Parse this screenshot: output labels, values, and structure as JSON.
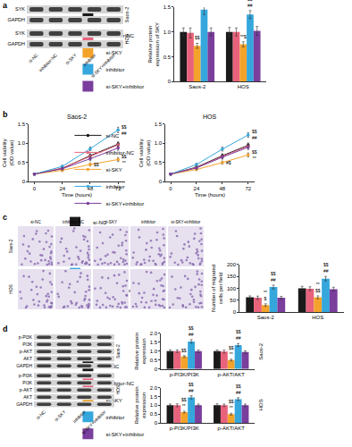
{
  "panel_labels": [
    "a",
    "b",
    "c",
    "d"
  ],
  "blot_a": {
    "rows": [
      {
        "cell_line": "Saos-2",
        "bands": [
          "SYK",
          "GAPDH"
        ]
      },
      {
        "cell_line": "HOS",
        "bands": [
          "SYK",
          "GAPDH"
        ]
      }
    ],
    "lanes": [
      "si-NC",
      "inhibitor-NC",
      "si-SKY",
      "inhibitor",
      "si-SKY+inhibitor"
    ]
  },
  "micrographs_c": {
    "columns": [
      "si-NC",
      "inhibitor-NC",
      "si-SKY",
      "inhibitor",
      "si-SKY+inhibitor"
    ],
    "rows": [
      "Saos-2",
      "HOS"
    ]
  },
  "blot_d": {
    "rows": [
      {
        "cell_line": "Saos-2",
        "bands": [
          "p-PI3K",
          "PI3K",
          "p-AKT",
          "AKT",
          "GAPDH"
        ]
      },
      {
        "cell_line": "HOS",
        "bands": [
          "p-PI3K",
          "PI3K",
          "p-AKT",
          "AKT",
          "GAPDH"
        ]
      }
    ],
    "lanes": [
      "si-NC",
      "si-SKY",
      "inhibitor",
      "si-SKY+inhibitor"
    ]
  },
  "chart_data": [
    {
      "type": "bar",
      "categories": [
        "Saos-2",
        "HOS"
      ],
      "ylabel": "Relative protein expression of SKY",
      "ylim": [
        0,
        1.5
      ],
      "yticks": [
        0,
        0.5,
        {
          "value": 1,
          "label": "1.0"
        },
        1.5
      ],
      "grid": false,
      "legend": "right",
      "series": [
        {
          "name": "si-NC",
          "color": "#1a1a1a",
          "values": [
            1.0,
            1.0
          ],
          "errors": [
            0.08,
            0.09
          ]
        },
        {
          "name": "inhibitor-NC",
          "color": "#e8627c",
          "values": [
            0.98,
            1.0
          ],
          "errors": [
            0.1,
            0.08
          ]
        },
        {
          "name": "si-SKY",
          "color": "#f4a32a",
          "values": [
            0.72,
            0.75
          ],
          "errors": [
            0.05,
            0.05
          ]
        },
        {
          "name": "inhibitor",
          "color": "#35a7dc",
          "values": [
            1.45,
            1.35
          ],
          "errors": [
            0.1,
            0.08
          ]
        },
        {
          "name": "si-SKY+inhibitor",
          "color": "#7a3e9d",
          "values": [
            1.0,
            1.02
          ],
          "errors": [
            0.08,
            0.09
          ]
        }
      ],
      "annotations": [
        {
          "category": "Saos-2",
          "series": "si-SKY",
          "lines": [
            "$$"
          ]
        },
        {
          "category": "Saos-2",
          "series": "inhibitor",
          "lines": [
            "$$",
            "##"
          ]
        },
        {
          "category": "HOS",
          "series": "si-SKY",
          "lines": [
            "**$"
          ]
        },
        {
          "category": "HOS",
          "series": "inhibitor",
          "lines": [
            "$$",
            "##"
          ]
        }
      ]
    },
    {
      "type": "line",
      "title": "Saos-2",
      "x": [
        0,
        24,
        48,
        72
      ],
      "xlabel": "Time (hours)",
      "ylabel": "Cell viability (OD value)",
      "xlim": [
        -5,
        78
      ],
      "xticks": [
        0,
        24,
        48,
        72
      ],
      "ylim": [
        0,
        1.5
      ],
      "yticks": [
        0,
        0.5,
        {
          "value": 1,
          "label": "1.0"
        },
        1.5
      ],
      "grid": false,
      "marker": "circle",
      "series": [
        {
          "name": "si-NC",
          "color": "#1a1a1a",
          "values": [
            0.2,
            0.35,
            0.68,
            0.98
          ],
          "errors": [
            0.02,
            0.03,
            0.05,
            0.06
          ]
        },
        {
          "name": "inhibitor-NC",
          "color": "#e8627c",
          "values": [
            0.2,
            0.36,
            0.66,
            0.96
          ],
          "errors": [
            0.02,
            0.03,
            0.05,
            0.06
          ]
        },
        {
          "name": "si-SKY",
          "color": "#f4a32a",
          "values": [
            0.2,
            0.3,
            0.45,
            0.58
          ],
          "errors": [
            0.02,
            0.03,
            0.04,
            0.05
          ]
        },
        {
          "name": "inhibitor",
          "color": "#35a7dc",
          "values": [
            0.2,
            0.4,
            0.86,
            1.35
          ],
          "errors": [
            0.02,
            0.03,
            0.05,
            0.07
          ]
        },
        {
          "name": "si-SKY+inhibitor",
          "color": "#7a3e9d",
          "values": [
            0.2,
            0.34,
            0.6,
            0.88
          ],
          "errors": [
            0.02,
            0.03,
            0.05,
            0.06
          ]
        }
      ],
      "annotations": [
        {
          "x": 72,
          "series": "inhibitor",
          "lines": [
            "$$",
            "##"
          ]
        },
        {
          "x": 72,
          "series": "si-SKY",
          "lines": [
            "$$",
            "**"
          ]
        },
        {
          "x": 48,
          "series": "si-SKY",
          "lines": [
            "$$"
          ]
        }
      ]
    },
    {
      "type": "line",
      "title": "HOS",
      "x": [
        0,
        24,
        48,
        72
      ],
      "xlabel": "Time (hours)",
      "ylabel": "Cell viability (OD value)",
      "xlim": [
        -5,
        78
      ],
      "xticks": [
        0,
        24,
        48,
        72
      ],
      "ylim": [
        0,
        1.5
      ],
      "yticks": [
        0,
        0.5,
        {
          "value": 1,
          "label": "1.0"
        },
        1.5
      ],
      "grid": false,
      "marker": "circle",
      "legend": "right",
      "series": [
        {
          "name": "si-NC",
          "color": "#1a1a1a",
          "values": [
            0.2,
            0.38,
            0.68,
            0.95
          ],
          "errors": [
            0.02,
            0.03,
            0.05,
            0.06
          ]
        },
        {
          "name": "inhibitor-NC",
          "color": "#e8627c",
          "values": [
            0.2,
            0.37,
            0.66,
            0.93
          ],
          "errors": [
            0.02,
            0.03,
            0.05,
            0.06
          ]
        },
        {
          "name": "si-SKY",
          "color": "#f4a32a",
          "values": [
            0.2,
            0.32,
            0.5,
            0.7
          ],
          "errors": [
            0.02,
            0.03,
            0.04,
            0.05
          ]
        },
        {
          "name": "inhibitor",
          "color": "#35a7dc",
          "values": [
            0.2,
            0.45,
            0.85,
            1.22
          ],
          "errors": [
            0.02,
            0.03,
            0.05,
            0.06
          ]
        },
        {
          "name": "si-SKY+inhibitor",
          "color": "#7a3e9d",
          "values": [
            0.2,
            0.36,
            0.64,
            0.9
          ],
          "errors": [
            0.02,
            0.03,
            0.05,
            0.06
          ]
        }
      ],
      "annotations": [
        {
          "x": 72,
          "series": "inhibitor",
          "lines": [
            "$$",
            "##"
          ]
        },
        {
          "x": 72,
          "series": "si-SKY",
          "lines": [
            "$$",
            "**"
          ]
        },
        {
          "x": 48,
          "series": "si-SKY",
          "lines": [
            "#$"
          ]
        }
      ]
    },
    {
      "type": "bar",
      "categories": [
        "Saos-2",
        "HOS"
      ],
      "ylabel": "Number of migrated cells per field",
      "ylim": [
        0,
        200
      ],
      "yticks": [
        0,
        50,
        100,
        150,
        200
      ],
      "grid": false,
      "legend": "top",
      "series": [
        {
          "name": "si-NC",
          "color": "#1a1a1a",
          "values": [
            62,
            100
          ],
          "errors": [
            6,
            8
          ]
        },
        {
          "name": "inhibitor-NC",
          "color": "#e8627c",
          "values": [
            60,
            98
          ],
          "errors": [
            7,
            8
          ]
        },
        {
          "name": "si-SKY",
          "color": "#f4a32a",
          "values": [
            30,
            62
          ],
          "errors": [
            5,
            6
          ]
        },
        {
          "name": "inhibitor",
          "color": "#35a7dc",
          "values": [
            105,
            140
          ],
          "errors": [
            8,
            9
          ]
        },
        {
          "name": "si-SKY+inhibitor",
          "color": "#7a3e9d",
          "values": [
            60,
            96
          ],
          "errors": [
            6,
            8
          ]
        }
      ],
      "annotations": [
        {
          "category": "Saos-2",
          "series": "si-SKY",
          "lines": [
            "**",
            "$"
          ]
        },
        {
          "category": "Saos-2",
          "series": "inhibitor",
          "lines": [
            "$$",
            "##"
          ]
        },
        {
          "category": "HOS",
          "series": "si-SKY",
          "lines": [
            "**",
            "$$"
          ]
        },
        {
          "category": "HOS",
          "series": "inhibitor",
          "lines": [
            "$$",
            "##"
          ]
        }
      ]
    },
    {
      "type": "bar",
      "title": "Saos-2",
      "categories": [
        "p-PI3K/PI3K",
        "p-AKT/AKT"
      ],
      "ylabel": "Relative protein expression",
      "ylim": [
        0,
        2.0
      ],
      "yticks": [
        0,
        0.5,
        {
          "value": 1,
          "label": "1.0"
        },
        1.5,
        {
          "value": 2,
          "label": "2.0"
        }
      ],
      "grid": false,
      "legend": "right",
      "series": [
        {
          "name": "si-NC",
          "color": "#1a1a1a",
          "values": [
            1.0,
            1.0
          ],
          "errors": [
            0.08,
            0.07
          ]
        },
        {
          "name": "inhibitor-NC",
          "color": "#e8627c",
          "values": [
            1.0,
            0.98
          ],
          "errors": [
            0.07,
            0.08
          ]
        },
        {
          "name": "si-SKY",
          "color": "#f4a32a",
          "values": [
            0.7,
            0.5
          ],
          "errors": [
            0.05,
            0.05
          ]
        },
        {
          "name": "inhibitor",
          "color": "#35a7dc",
          "values": [
            1.55,
            1.35
          ],
          "errors": [
            0.1,
            0.08
          ]
        },
        {
          "name": "si-SKY+inhibitor",
          "color": "#7a3e9d",
          "values": [
            1.0,
            0.95
          ],
          "errors": [
            0.07,
            0.07
          ]
        }
      ],
      "annotations": [
        {
          "category": "p-PI3K/PI3K",
          "series": "si-SKY",
          "lines": [
            "$$"
          ]
        },
        {
          "category": "p-PI3K/PI3K",
          "series": "inhibitor",
          "lines": [
            "$$",
            "##"
          ]
        },
        {
          "category": "p-AKT/AKT",
          "series": "si-SKY",
          "lines": [
            "$$",
            "**"
          ]
        },
        {
          "category": "p-AKT/AKT",
          "series": "inhibitor",
          "lines": [
            "$$",
            "##"
          ]
        }
      ]
    },
    {
      "type": "bar",
      "title": "HOS",
      "categories": [
        "p-PI3K/PI3K",
        "p-AKT/AKT"
      ],
      "ylabel": "Relative protein expression",
      "ylim": [
        0,
        2.0
      ],
      "yticks": [
        0,
        0.5,
        {
          "value": 1,
          "label": "1.0"
        },
        1.5,
        {
          "value": 2,
          "label": "2.0"
        }
      ],
      "grid": false,
      "series": [
        {
          "name": "si-NC",
          "color": "#1a1a1a",
          "values": [
            1.0,
            1.0
          ],
          "errors": [
            0.07,
            0.08
          ]
        },
        {
          "name": "inhibitor-NC",
          "color": "#e8627c",
          "values": [
            1.0,
            1.0
          ],
          "errors": [
            0.08,
            0.07
          ]
        },
        {
          "name": "si-SKY",
          "color": "#f4a32a",
          "values": [
            0.62,
            0.5
          ],
          "errors": [
            0.05,
            0.05
          ]
        },
        {
          "name": "inhibitor",
          "color": "#35a7dc",
          "values": [
            1.45,
            1.35
          ],
          "errors": [
            0.09,
            0.08
          ]
        },
        {
          "name": "si-SKY+inhibitor",
          "color": "#7a3e9d",
          "values": [
            1.0,
            1.0
          ],
          "errors": [
            0.07,
            0.07
          ]
        }
      ],
      "annotations": [
        {
          "category": "p-PI3K/PI3K",
          "series": "si-SKY",
          "lines": [
            "$$",
            "**"
          ]
        },
        {
          "category": "p-PI3K/PI3K",
          "series": "inhibitor",
          "lines": [
            "$$",
            "##"
          ]
        },
        {
          "category": "p-AKT/AKT",
          "series": "si-SKY",
          "lines": [
            "$$",
            "**"
          ]
        },
        {
          "category": "p-AKT/AKT",
          "series": "inhibitor",
          "lines": [
            "$$",
            "##"
          ]
        }
      ]
    }
  ]
}
